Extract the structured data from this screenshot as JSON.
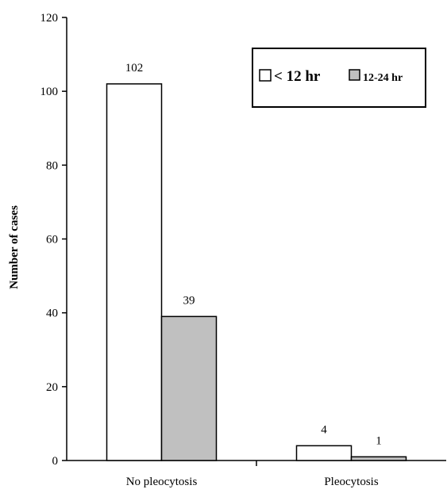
{
  "chart_data": {
    "type": "bar",
    "title": "",
    "xlabel": "",
    "ylabel": "Number of cases",
    "ylim": [
      0,
      120
    ],
    "yticks": [
      0,
      20,
      40,
      60,
      80,
      100,
      120
    ],
    "categories": [
      "No pleocytosis",
      "Pleocytosis"
    ],
    "series": [
      {
        "name": "< 12 hr",
        "values": [
          102,
          4
        ],
        "color": "#ffffff"
      },
      {
        "name": "12-24 hr",
        "values": [
          39,
          1
        ],
        "color": "#c0c0c0"
      }
    ],
    "data_labels": true,
    "grid": false,
    "legend_position": "top-right"
  }
}
